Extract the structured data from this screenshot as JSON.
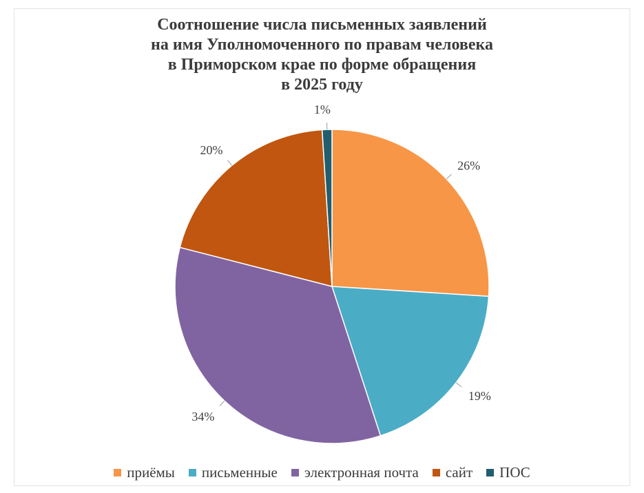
{
  "chart_data": {
    "type": "pie",
    "title_lines": [
      "Соотношение числа письменных заявлений",
      "на имя Уполномоченного по правам человека",
      "в Приморском крае по форме обращения",
      "в 2025 году"
    ],
    "categories": [
      "приёмы",
      "письменные",
      "электронная почта",
      "сайт",
      "ПОС"
    ],
    "values": [
      26,
      19,
      34,
      20,
      1
    ],
    "data_labels": [
      "26%",
      "19%",
      "34%",
      "20%",
      "1%"
    ],
    "colors": [
      "#F79646",
      "#4BACC6",
      "#8064A2",
      "#C0560F",
      "#215E6E"
    ],
    "legend_position": "bottom",
    "start_angle_deg": 0,
    "direction": "clockwise"
  }
}
